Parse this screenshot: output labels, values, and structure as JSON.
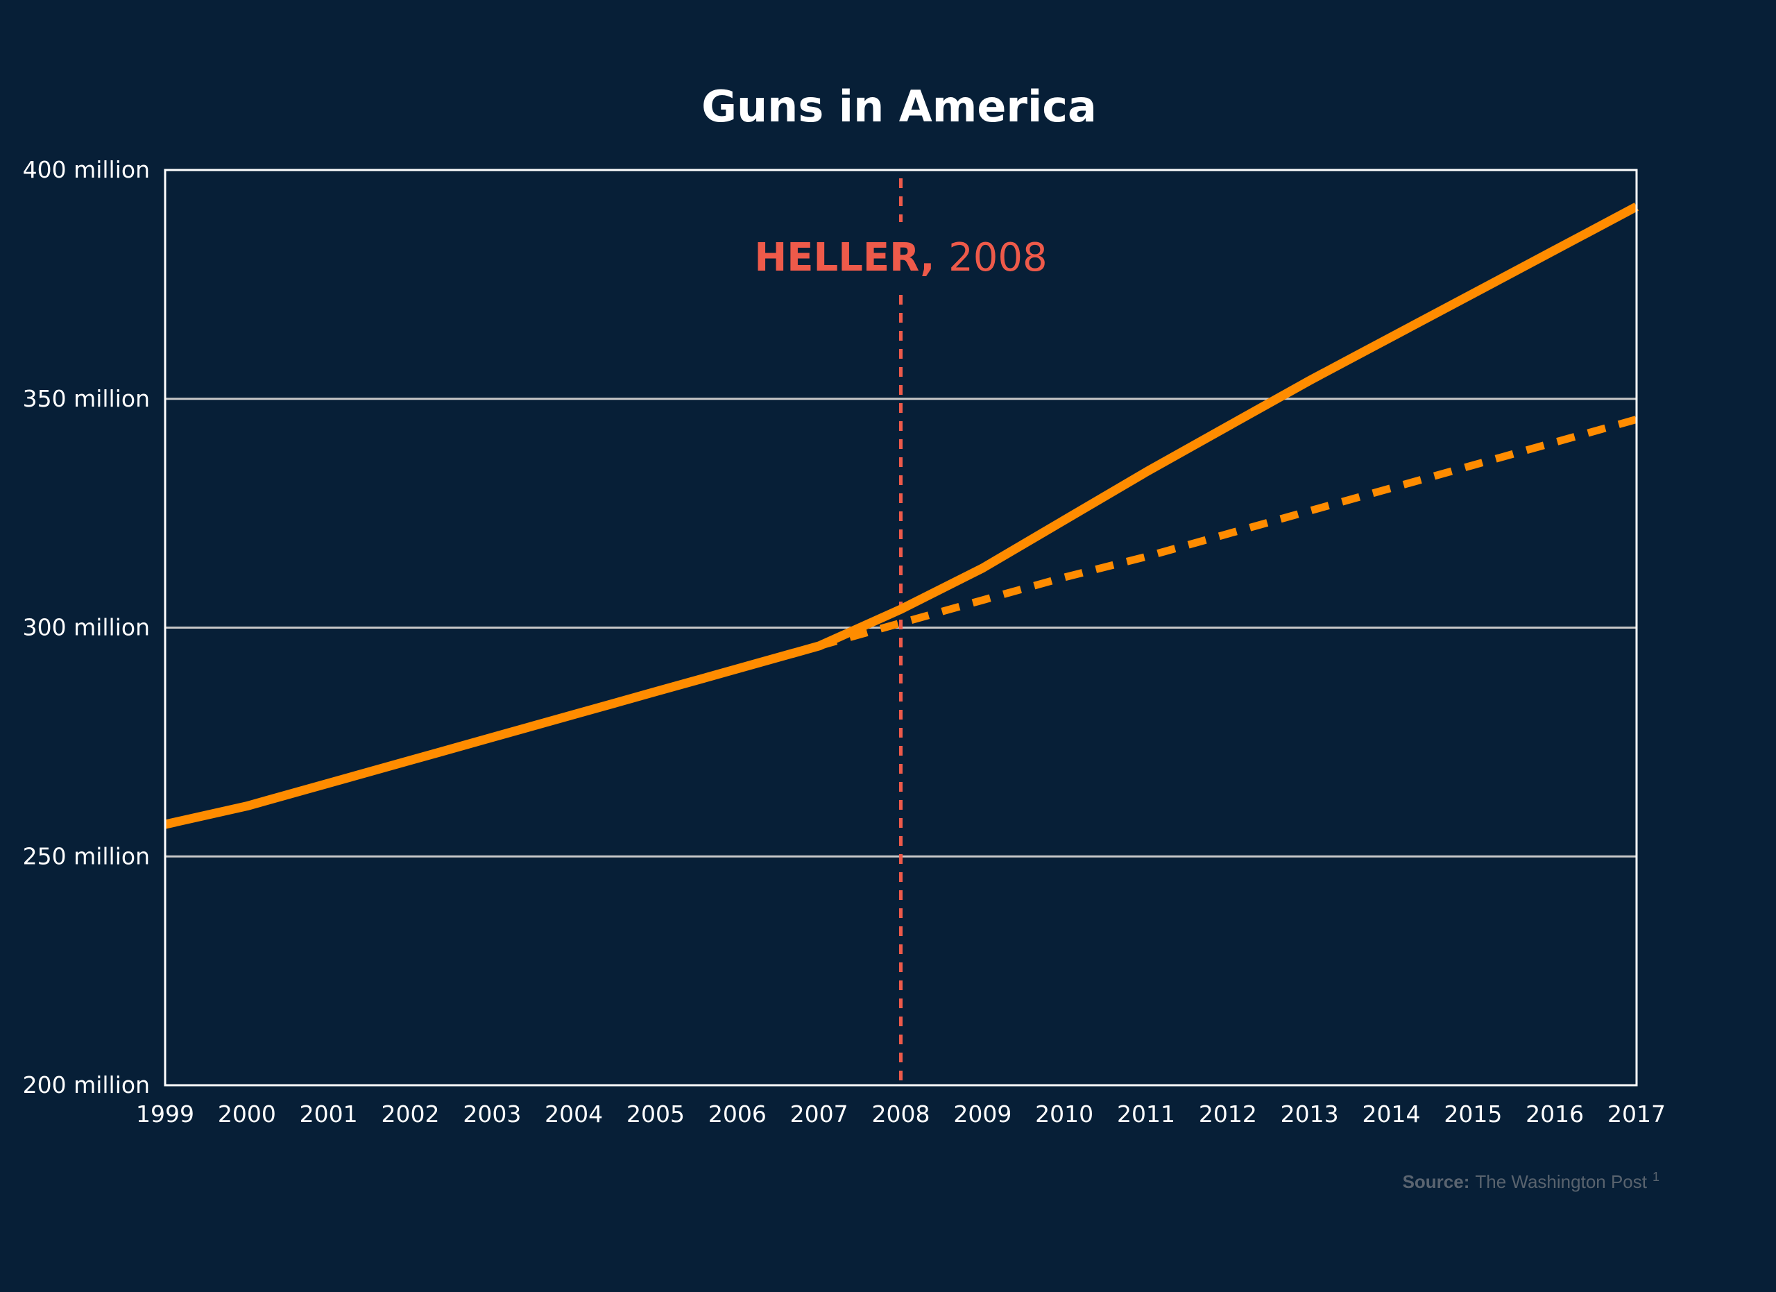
{
  "chart_data": {
    "type": "line",
    "title": "Guns in America",
    "xlabel": "",
    "ylabel": "",
    "x": [
      1999,
      2000,
      2001,
      2002,
      2003,
      2004,
      2005,
      2006,
      2007,
      2008,
      2009,
      2010,
      2011,
      2012,
      2013,
      2014,
      2015,
      2016,
      2017
    ],
    "x_tick_labels": [
      "1999",
      "2000",
      "2001",
      "2002",
      "2003",
      "2004",
      "2005",
      "2006",
      "2007",
      "2008",
      "2009",
      "2010",
      "2011",
      "2012",
      "2013",
      "2014",
      "2015",
      "2016",
      "2017"
    ],
    "ylim": [
      200000000,
      400000000
    ],
    "y_ticks": [
      200000000,
      250000000,
      300000000,
      350000000,
      400000000
    ],
    "y_tick_labels": [
      "200 million",
      "250 million",
      "300 million",
      "350 million",
      "400 million"
    ],
    "grid": true,
    "series": [
      {
        "style": "solid",
        "color": "#ff8c00",
        "points": [
          [
            1999,
            257000000
          ],
          [
            2000,
            261000000
          ],
          [
            2001,
            266000000
          ],
          [
            2002,
            271000000
          ],
          [
            2003,
            276000000
          ],
          [
            2004,
            281000000
          ],
          [
            2005,
            286000000
          ],
          [
            2006,
            291000000
          ],
          [
            2007,
            296000000
          ],
          [
            2008,
            304000000
          ],
          [
            2009,
            313000000
          ],
          [
            2010,
            323500000
          ],
          [
            2011,
            334000000
          ],
          [
            2012,
            344000000
          ],
          [
            2013,
            354000000
          ],
          [
            2014,
            363500000
          ],
          [
            2015,
            373000000
          ],
          [
            2016,
            382500000
          ],
          [
            2017,
            392000000
          ]
        ]
      },
      {
        "style": "dashed",
        "color": "#ff8c00",
        "points": [
          [
            2007,
            296000000
          ],
          [
            2008,
            301000000
          ],
          [
            2009,
            306000000
          ],
          [
            2010,
            311000000
          ],
          [
            2011,
            315500000
          ],
          [
            2012,
            320500000
          ],
          [
            2013,
            325500000
          ],
          [
            2014,
            330500000
          ],
          [
            2015,
            335500000
          ],
          [
            2016,
            340500000
          ],
          [
            2017,
            345500000
          ]
        ]
      }
    ],
    "annotations": [
      {
        "x": 2008,
        "label_bold": "HELLER,",
        "label_regular": "2008",
        "color": "#ee5a4a"
      }
    ],
    "source_label": "Source:",
    "source_text": "The Washington Post",
    "source_note": "1"
  },
  "colors": {
    "background": "#071f37",
    "text": "#ffffff",
    "grid": "#c8c8c8",
    "frame": "#ffffff",
    "line": "#ff8c00",
    "annotation": "#ee5a4a",
    "source_label": "#5a6470",
    "source_text": "#59636e"
  }
}
